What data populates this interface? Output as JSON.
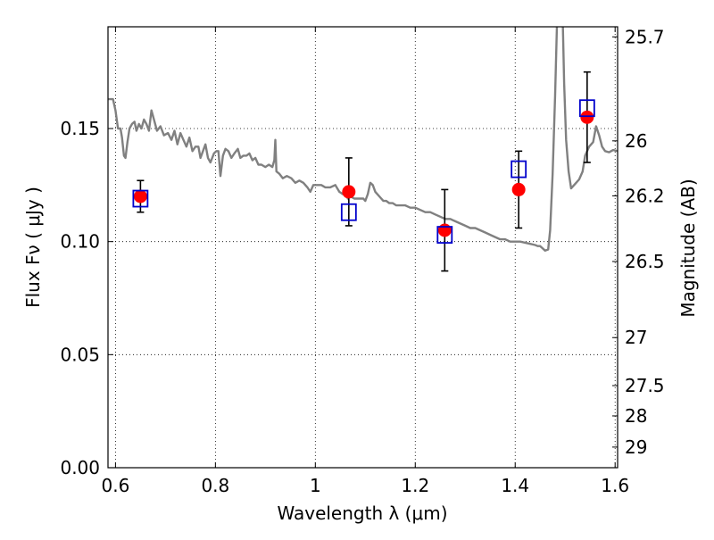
{
  "chart_data": {
    "type": "scatter",
    "title": "",
    "xlabel": "Wavelength  λ (μm)",
    "ylabel": "Flux  Fν  ( μJy )",
    "y2label": "Magnitude (AB)",
    "xlim": [
      0.585,
      1.605
    ],
    "ylim": [
      0.0,
      0.195
    ],
    "grid": true,
    "x_ticks": [
      0.6,
      0.8,
      1.0,
      1.2,
      1.4,
      1.6
    ],
    "x_tick_labels": [
      "0.6",
      "0.8",
      "1",
      "1.2",
      "1.4",
      "1.6"
    ],
    "y_ticks": [
      0.0,
      0.05,
      0.1,
      0.15
    ],
    "y_tick_labels": [
      "0.00",
      "0.05",
      "0.10",
      "0.15"
    ],
    "y2_ticks": [
      {
        "label": "25.7",
        "mag": 25.7
      },
      {
        "label": "26",
        "mag": 26.0
      },
      {
        "label": "26.2",
        "mag": 26.2
      },
      {
        "label": "26.5",
        "mag": 26.5
      },
      {
        "label": "27",
        "mag": 27.0
      },
      {
        "label": "27.5",
        "mag": 27.5
      },
      {
        "label": "28",
        "mag": 28.0
      },
      {
        "label": "29",
        "mag": 29.0
      }
    ],
    "colors": {
      "model": "#808080",
      "observed": "#ff0000",
      "model_photometry": "#0000cc",
      "errorbar": "#000000",
      "grid": "#000000"
    },
    "series": [
      {
        "kind": "line",
        "points": [
          [
            0.585,
            0.163
          ],
          [
            0.595,
            0.163
          ],
          [
            0.6,
            0.158
          ],
          [
            0.605,
            0.15
          ],
          [
            0.61,
            0.15
          ],
          [
            0.613,
            0.146
          ],
          [
            0.617,
            0.138
          ],
          [
            0.62,
            0.137
          ],
          [
            0.624,
            0.144
          ],
          [
            0.628,
            0.15
          ],
          [
            0.633,
            0.152
          ],
          [
            0.638,
            0.153
          ],
          [
            0.642,
            0.149
          ],
          [
            0.647,
            0.152
          ],
          [
            0.652,
            0.15
          ],
          [
            0.657,
            0.154
          ],
          [
            0.662,
            0.152
          ],
          [
            0.667,
            0.149
          ],
          [
            0.672,
            0.158
          ],
          [
            0.677,
            0.154
          ],
          [
            0.683,
            0.149
          ],
          [
            0.69,
            0.151
          ],
          [
            0.697,
            0.147
          ],
          [
            0.705,
            0.148
          ],
          [
            0.712,
            0.145
          ],
          [
            0.718,
            0.149
          ],
          [
            0.724,
            0.143
          ],
          [
            0.73,
            0.148
          ],
          [
            0.736,
            0.145
          ],
          [
            0.742,
            0.142
          ],
          [
            0.748,
            0.146
          ],
          [
            0.754,
            0.14
          ],
          [
            0.76,
            0.142
          ],
          [
            0.766,
            0.142
          ],
          [
            0.77,
            0.137
          ],
          [
            0.775,
            0.14
          ],
          [
            0.78,
            0.143
          ],
          [
            0.785,
            0.137
          ],
          [
            0.79,
            0.135
          ],
          [
            0.797,
            0.139
          ],
          [
            0.802,
            0.14
          ],
          [
            0.806,
            0.14
          ],
          [
            0.81,
            0.129
          ],
          [
            0.815,
            0.138
          ],
          [
            0.82,
            0.141
          ],
          [
            0.826,
            0.14
          ],
          [
            0.832,
            0.137
          ],
          [
            0.838,
            0.139
          ],
          [
            0.845,
            0.141
          ],
          [
            0.85,
            0.137
          ],
          [
            0.856,
            0.138
          ],
          [
            0.862,
            0.138
          ],
          [
            0.868,
            0.139
          ],
          [
            0.874,
            0.136
          ],
          [
            0.88,
            0.137
          ],
          [
            0.886,
            0.134
          ],
          [
            0.892,
            0.134
          ],
          [
            0.9,
            0.133
          ],
          [
            0.907,
            0.134
          ],
          [
            0.914,
            0.133
          ],
          [
            0.918,
            0.136
          ],
          [
            0.92,
            0.145
          ],
          [
            0.922,
            0.131
          ],
          [
            0.928,
            0.13
          ],
          [
            0.935,
            0.128
          ],
          [
            0.943,
            0.129
          ],
          [
            0.952,
            0.128
          ],
          [
            0.96,
            0.126
          ],
          [
            0.968,
            0.127
          ],
          [
            0.976,
            0.126
          ],
          [
            0.984,
            0.124
          ],
          [
            0.99,
            0.122
          ],
          [
            0.996,
            0.125
          ],
          [
            1.003,
            0.125
          ],
          [
            1.012,
            0.125
          ],
          [
            1.02,
            0.124
          ],
          [
            1.03,
            0.124
          ],
          [
            1.04,
            0.125
          ],
          [
            1.048,
            0.122
          ],
          [
            1.055,
            0.121
          ],
          [
            1.06,
            0.123
          ],
          [
            1.065,
            0.119
          ],
          [
            1.07,
            0.12
          ],
          [
            1.078,
            0.119
          ],
          [
            1.088,
            0.119
          ],
          [
            1.096,
            0.119
          ],
          [
            1.1,
            0.118
          ],
          [
            1.105,
            0.121
          ],
          [
            1.11,
            0.126
          ],
          [
            1.115,
            0.125
          ],
          [
            1.12,
            0.122
          ],
          [
            1.128,
            0.12
          ],
          [
            1.136,
            0.118
          ],
          [
            1.142,
            0.118
          ],
          [
            1.148,
            0.117
          ],
          [
            1.155,
            0.117
          ],
          [
            1.162,
            0.116
          ],
          [
            1.17,
            0.116
          ],
          [
            1.18,
            0.116
          ],
          [
            1.19,
            0.115
          ],
          [
            1.2,
            0.115
          ],
          [
            1.21,
            0.114
          ],
          [
            1.22,
            0.113
          ],
          [
            1.23,
            0.113
          ],
          [
            1.24,
            0.112
          ],
          [
            1.25,
            0.111
          ],
          [
            1.26,
            0.11
          ],
          [
            1.27,
            0.11
          ],
          [
            1.28,
            0.109
          ],
          [
            1.29,
            0.108
          ],
          [
            1.3,
            0.107
          ],
          [
            1.31,
            0.106
          ],
          [
            1.32,
            0.106
          ],
          [
            1.33,
            0.105
          ],
          [
            1.34,
            0.104
          ],
          [
            1.35,
            0.103
          ],
          [
            1.36,
            0.102
          ],
          [
            1.37,
            0.101
          ],
          [
            1.38,
            0.101
          ],
          [
            1.39,
            0.1
          ],
          [
            1.4,
            0.1
          ],
          [
            1.41,
            0.1
          ],
          [
            1.42,
            0.0995
          ],
          [
            1.43,
            0.099
          ],
          [
            1.44,
            0.0985
          ],
          [
            1.445,
            0.098
          ],
          [
            1.45,
            0.098
          ],
          [
            1.455,
            0.097
          ],
          [
            1.46,
            0.096
          ],
          [
            1.466,
            0.0965
          ],
          [
            1.47,
            0.105
          ],
          [
            1.475,
            0.13
          ],
          [
            1.48,
            0.165
          ],
          [
            1.484,
            0.2
          ]
        ]
      },
      {
        "kind": "line",
        "points": [
          [
            1.495,
            0.2
          ],
          [
            1.498,
            0.17
          ],
          [
            1.502,
            0.145
          ],
          [
            1.507,
            0.131
          ],
          [
            1.512,
            0.1235
          ],
          [
            1.52,
            0.1255
          ],
          [
            1.528,
            0.1275
          ],
          [
            1.535,
            0.131
          ],
          [
            1.54,
            0.138
          ],
          [
            1.548,
            0.142
          ],
          [
            1.556,
            0.144
          ],
          [
            1.562,
            0.151
          ],
          [
            1.568,
            0.147
          ],
          [
            1.574,
            0.142
          ],
          [
            1.58,
            0.14
          ],
          [
            1.588,
            0.1395
          ],
          [
            1.596,
            0.1405
          ],
          [
            1.605,
            0.14
          ]
        ]
      },
      {
        "name": "",
        "kind": "points",
        "x": [
          0.65,
          1.067,
          1.259,
          1.407,
          1.544
        ],
        "y": [
          0.12,
          0.122,
          0.105,
          0.123,
          0.155
        ],
        "yerr": [
          0.007,
          0.015,
          0.018,
          0.017,
          0.02
        ]
      },
      {
        "name": "",
        "kind": "squares",
        "x": [
          0.65,
          1.067,
          1.259,
          1.407,
          1.544
        ],
        "y": [
          0.119,
          0.113,
          0.103,
          0.132,
          0.159
        ]
      }
    ]
  }
}
